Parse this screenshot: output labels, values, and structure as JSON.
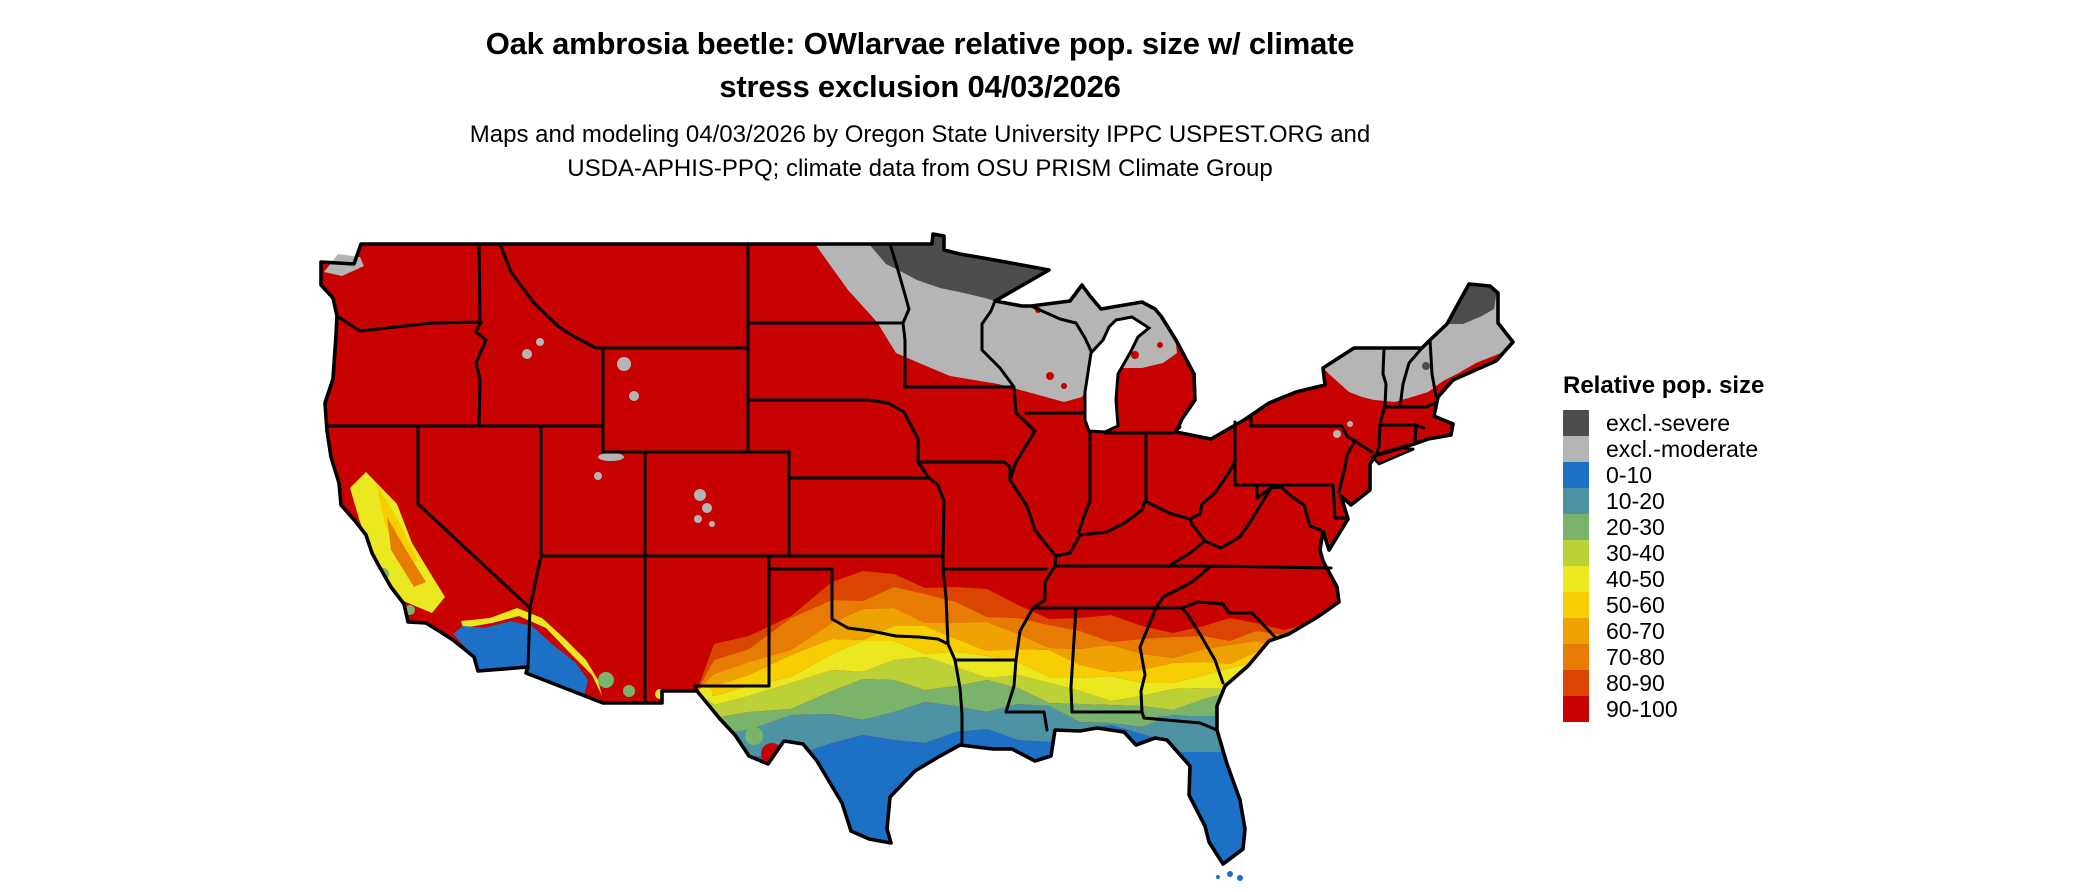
{
  "title": {
    "line1": "Oak ambrosia beetle: OWlarvae relative pop. size w/ climate",
    "line2": "stress exclusion 04/03/2026"
  },
  "subtitle": {
    "line1": "Maps and modeling 04/03/2026 by Oregon State University IPPC USPEST.ORG and",
    "line2": "USDA-APHIS-PPQ; climate data from OSU PRISM Climate Group"
  },
  "legend": {
    "title": "Relative pop. size",
    "items": [
      {
        "label": "excl.-severe",
        "key": "exclSevere",
        "color": "#4D4D4D"
      },
      {
        "label": "excl.-moderate",
        "key": "exclModerate",
        "color": "#B5B5B5"
      },
      {
        "label": "0-10",
        "key": "d0",
        "color": "#1C71C7"
      },
      {
        "label": "10-20",
        "key": "d10",
        "color": "#4D93A3"
      },
      {
        "label": "20-30",
        "key": "d20",
        "color": "#7AB36A"
      },
      {
        "label": "30-40",
        "key": "d30",
        "color": "#BCD138"
      },
      {
        "label": "40-50",
        "key": "d40",
        "color": "#EAE821"
      },
      {
        "label": "50-60",
        "key": "d50",
        "color": "#F6CE03"
      },
      {
        "label": "60-70",
        "key": "d60",
        "color": "#EFA204"
      },
      {
        "label": "70-80",
        "key": "d70",
        "color": "#E67C04"
      },
      {
        "label": "80-90",
        "key": "d80",
        "color": "#DA4502"
      },
      {
        "label": "90-100",
        "key": "d90",
        "color": "#C80101"
      }
    ]
  },
  "palette": {
    "exclSevere": "#4D4D4D",
    "exclModerate": "#B5B5B5",
    "d0": "#1C71C7",
    "d10": "#4D93A3",
    "d20": "#7AB36A",
    "d30": "#BCD138",
    "d40": "#EAE821",
    "d50": "#F6CE03",
    "d60": "#EFA204",
    "d70": "#E67C04",
    "d80": "#DA4502",
    "d90": "#C80101",
    "water": "#FFFFFF",
    "border": "#000000"
  },
  "map": {
    "kind": "raster choropleth map",
    "region": "Continental United States with state boundaries",
    "variable": "OWlarvae relative population size with climate stress exclusion",
    "date_shown": "04/03/2026",
    "classes_shown": [
      "excl.-severe",
      "excl.-moderate",
      "0-10",
      "10-20",
      "20-30",
      "30-40",
      "40-50",
      "50-60",
      "60-70",
      "70-80",
      "80-90",
      "90-100"
    ],
    "distribution": [
      {
        "class": "90-100",
        "areas": "Pacific Northwest, interior California, Great Basin, Rockies, Great Plains, Midwest, Ohio Valley, Mid-Atlantic, southern New England and the Southeast interior"
      },
      {
        "class": "80-90 to 60-70",
        "areas": "Band from central Oklahoma and north Texas across Arkansas, west Tennessee, central Mississippi, Alabama and Georgia into South Carolina and coastal North Carolina; southern New Mexico"
      },
      {
        "class": "50-60 to 30-40",
        "areas": "Central Texas, southern Mississippi/Alabama/Georgia, Sierra Nevada foothills and California coast ranges"
      },
      {
        "class": "20-30 and 10-20",
        "areas": "Texas hill country and coastal plain, southern Louisiana, Gulf Coast, south Georgia and north Florida"
      },
      {
        "class": "0-10",
        "areas": "South Texas, Florida peninsula, southwestern Arizona and southeastern California deserts"
      },
      {
        "class": "excl.-moderate",
        "areas": "Eastern Dakotas, central Minnesota, Wisconsin, northern Michigan, Adirondacks, northern New England"
      },
      {
        "class": "excl.-severe",
        "areas": "Northern Minnesota and northern Maine"
      }
    ]
  }
}
